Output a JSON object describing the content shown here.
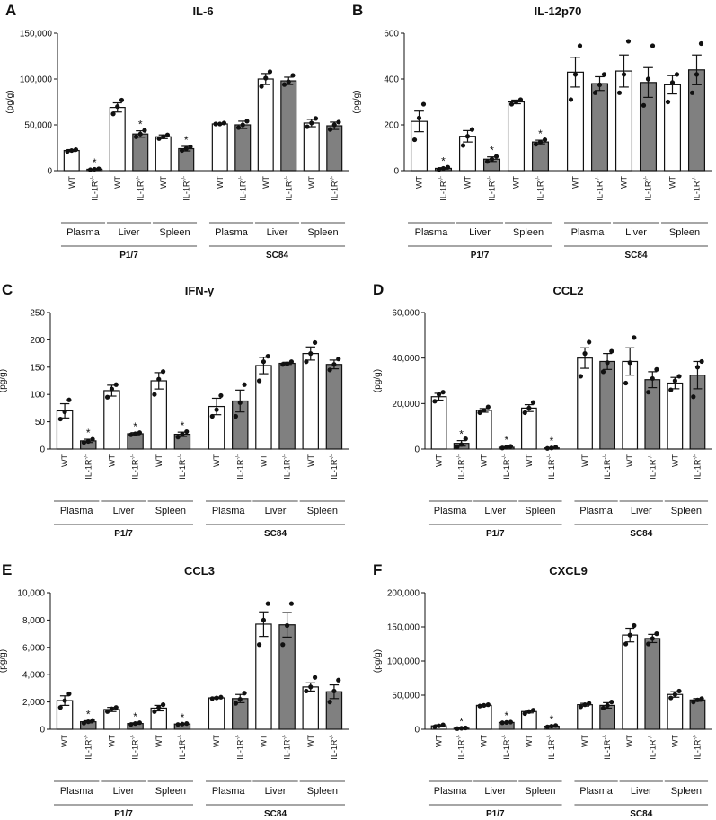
{
  "figure": {
    "colors": {
      "wt_fill": "#ffffff",
      "ko_fill": "#808080",
      "stroke": "#111111"
    },
    "wt_label": "WT",
    "ko_label": "IL-1R",
    "ko_superscript": "-/-",
    "tissue_labels": [
      "Plasma",
      "Liver",
      "Spleen",
      "Plasma",
      "Liver",
      "Spleen"
    ],
    "model_labels": [
      "P1/7",
      "SC84"
    ],
    "significance_marker": "*"
  },
  "chart_data": [
    {
      "panel": "A",
      "title": "IL-6",
      "type": "bar",
      "ylabel": "(pg/g)",
      "ylim": [
        0,
        150000
      ],
      "yticks": [
        "0",
        "50,000",
        "100,000",
        "150,000"
      ],
      "ytick_values": [
        0,
        50000,
        100000,
        150000
      ],
      "categories": [
        "WT",
        "IL-1R-/-",
        "WT",
        "IL-1R-/-",
        "WT",
        "IL-1R-/-",
        "WT",
        "IL-1R-/-",
        "WT",
        "IL-1R-/-",
        "WT",
        "IL-1R-/-"
      ],
      "values": [
        22000,
        1500,
        69000,
        40000,
        37000,
        24000,
        51000,
        50000,
        100000,
        98000,
        52000,
        49000
      ],
      "errors": [
        1000,
        300,
        5000,
        3500,
        2000,
        2500,
        500,
        4000,
        6000,
        4000,
        4000,
        4000
      ],
      "points": [
        [
          21000,
          22000,
          23000
        ],
        [
          1000,
          1500,
          2000
        ],
        [
          62000,
          70000,
          77000
        ],
        [
          37000,
          40000,
          44000
        ],
        [
          35000,
          37000,
          39000
        ],
        [
          22000,
          24000,
          26000
        ],
        [
          51000,
          51000,
          52000
        ],
        [
          47000,
          50000,
          54000
        ],
        [
          92000,
          101000,
          108000
        ],
        [
          94000,
          97000,
          104000
        ],
        [
          48000,
          52000,
          57000
        ],
        [
          45000,
          50000,
          53000
        ]
      ],
      "significant": [
        false,
        true,
        false,
        true,
        false,
        true,
        false,
        false,
        false,
        false,
        false,
        false
      ]
    },
    {
      "panel": "B",
      "title": "IL-12p70",
      "type": "bar",
      "ylabel": "(pg/g)",
      "ylim": [
        0,
        600
      ],
      "yticks": [
        "0",
        "200",
        "400",
        "600"
      ],
      "ytick_values": [
        0,
        200,
        400,
        600
      ],
      "categories": [
        "WT",
        "IL-1R-/-",
        "WT",
        "IL-1R-/-",
        "WT",
        "IL-1R-/-",
        "WT",
        "IL-1R-/-",
        "WT",
        "IL-1R-/-",
        "WT",
        "IL-1R-/-"
      ],
      "values": [
        215,
        10,
        150,
        50,
        300,
        125,
        430,
        380,
        435,
        385,
        375,
        440
      ],
      "errors": [
        45,
        3,
        25,
        10,
        8,
        8,
        65,
        30,
        70,
        65,
        40,
        65
      ],
      "points": [
        [
          135,
          230,
          290
        ],
        [
          5,
          10,
          15
        ],
        [
          110,
          150,
          180
        ],
        [
          40,
          50,
          62
        ],
        [
          290,
          300,
          310
        ],
        [
          115,
          125,
          135
        ],
        [
          310,
          420,
          545
        ],
        [
          340,
          375,
          420
        ],
        [
          340,
          420,
          565
        ],
        [
          285,
          400,
          545
        ],
        [
          300,
          385,
          420
        ],
        [
          340,
          420,
          555
        ]
      ],
      "significant": [
        false,
        true,
        false,
        true,
        false,
        true,
        false,
        false,
        false,
        false,
        false,
        false
      ]
    },
    {
      "panel": "C",
      "title": "IFN-γ",
      "type": "bar",
      "ylabel": "(pg/g)",
      "ylim": [
        0,
        250
      ],
      "yticks": [
        "0",
        "50",
        "100",
        "150",
        "200",
        "250"
      ],
      "ytick_values": [
        0,
        50,
        100,
        150,
        200,
        250
      ],
      "categories": [
        "WT",
        "IL-1R-/-",
        "WT",
        "IL-1R-/-",
        "WT",
        "IL-1R-/-",
        "WT",
        "IL-1R-/-",
        "WT",
        "IL-1R-/-",
        "WT",
        "IL-1R-/-"
      ],
      "values": [
        70,
        15,
        107,
        28,
        125,
        27,
        78,
        88,
        153,
        157,
        175,
        155
      ],
      "errors": [
        13,
        3,
        10,
        2,
        15,
        4,
        15,
        20,
        15,
        2,
        12,
        8
      ],
      "points": [
        [
          55,
          68,
          90
        ],
        [
          12,
          14,
          18
        ],
        [
          95,
          110,
          118
        ],
        [
          26,
          28,
          30
        ],
        [
          100,
          128,
          142
        ],
        [
          22,
          27,
          32
        ],
        [
          60,
          72,
          98
        ],
        [
          60,
          85,
          118
        ],
        [
          125,
          160,
          170
        ],
        [
          155,
          156,
          160
        ],
        [
          160,
          175,
          195
        ],
        [
          145,
          155,
          165
        ]
      ],
      "significant": [
        false,
        true,
        false,
        true,
        false,
        true,
        false,
        false,
        false,
        false,
        false,
        false
      ]
    },
    {
      "panel": "D",
      "title": "CCL2",
      "type": "bar",
      "ylabel": "(pg/g)",
      "ylim": [
        0,
        60000
      ],
      "yticks": [
        "0",
        "20,000",
        "40,000",
        "60,000"
      ],
      "ytick_values": [
        0,
        20000,
        40000,
        60000
      ],
      "categories": [
        "WT",
        "IL-1R-/-",
        "WT",
        "IL-1R-/-",
        "WT",
        "IL-1R-/-",
        "WT",
        "IL-1R-/-",
        "WT",
        "IL-1R-/-",
        "WT",
        "IL-1R-/-"
      ],
      "values": [
        23000,
        2500,
        17000,
        800,
        18000,
        500,
        40000,
        38500,
        38500,
        30500,
        29000,
        32500
      ],
      "errors": [
        1500,
        1200,
        800,
        300,
        1500,
        200,
        4500,
        3500,
        6000,
        3500,
        2500,
        6000
      ],
      "points": [
        [
          21000,
          24000,
          25000
        ],
        [
          1000,
          2000,
          4500
        ],
        [
          16000,
          17000,
          18500
        ],
        [
          500,
          800,
          1200
        ],
        [
          16000,
          18000,
          20500
        ],
        [
          300,
          500,
          800
        ],
        [
          32000,
          42000,
          47000
        ],
        [
          34000,
          38000,
          43000
        ],
        [
          29000,
          38000,
          49000
        ],
        [
          25000,
          31000,
          35000
        ],
        [
          26000,
          30000,
          32000
        ],
        [
          23000,
          36000,
          38500
        ]
      ],
      "significant": [
        false,
        true,
        false,
        true,
        false,
        true,
        false,
        false,
        false,
        false,
        false,
        false
      ]
    },
    {
      "panel": "E",
      "title": "CCL3",
      "type": "bar",
      "ylabel": "(pg/g)",
      "ylim": [
        0,
        10000
      ],
      "yticks": [
        "0",
        "2,000",
        "4,000",
        "6,000",
        "8,000",
        "10,000"
      ],
      "ytick_values": [
        0,
        2000,
        4000,
        6000,
        8000,
        10000
      ],
      "categories": [
        "WT",
        "IL-1R-/-",
        "WT",
        "IL-1R-/-",
        "WT",
        "IL-1R-/-",
        "WT",
        "IL-1R-/-",
        "WT",
        "IL-1R-/-",
        "WT",
        "IL-1R-/-"
      ],
      "values": [
        2100,
        550,
        1450,
        420,
        1550,
        380,
        2300,
        2250,
        7700,
        7650,
        3100,
        2750
      ],
      "errors": [
        350,
        80,
        150,
        50,
        200,
        30,
        50,
        300,
        900,
        900,
        300,
        500
      ],
      "points": [
        [
          1600,
          2100,
          2600
        ],
        [
          450,
          550,
          650
        ],
        [
          1300,
          1500,
          1600
        ],
        [
          350,
          420,
          480
        ],
        [
          1300,
          1600,
          1800
        ],
        [
          350,
          380,
          420
        ],
        [
          2250,
          2300,
          2350
        ],
        [
          1900,
          2200,
          2650
        ],
        [
          6200,
          8000,
          9200
        ],
        [
          6200,
          7600,
          9200
        ],
        [
          2800,
          3100,
          3800
        ],
        [
          2000,
          2800,
          3600
        ]
      ],
      "significant": [
        false,
        true,
        false,
        true,
        false,
        true,
        false,
        false,
        false,
        false,
        false,
        false
      ]
    },
    {
      "panel": "F",
      "title": "CXCL9",
      "type": "bar",
      "ylabel": "(pg/g)",
      "ylim": [
        0,
        200000
      ],
      "yticks": [
        "0",
        "50,000",
        "100,000",
        "150,000",
        "200,000"
      ],
      "ytick_values": [
        0,
        50000,
        100000,
        150000,
        200000
      ],
      "categories": [
        "WT",
        "IL-1R-/-",
        "WT",
        "IL-1R-/-",
        "WT",
        "IL-1R-/-",
        "WT",
        "IL-1R-/-",
        "WT",
        "IL-1R-/-",
        "WT",
        "IL-1R-/-"
      ],
      "values": [
        5000,
        1500,
        35000,
        10000,
        26000,
        4500,
        36000,
        35000,
        138000,
        133000,
        51000,
        43000
      ],
      "errors": [
        1500,
        500,
        1000,
        500,
        2000,
        1000,
        2000,
        4000,
        10000,
        6000,
        4000,
        2000
      ],
      "points": [
        [
          3500,
          5000,
          6500
        ],
        [
          1000,
          1500,
          2000
        ],
        [
          34000,
          35000,
          36000
        ],
        [
          9500,
          10000,
          10500
        ],
        [
          23000,
          26000,
          28000
        ],
        [
          3500,
          4500,
          5500
        ],
        [
          33000,
          36000,
          38000
        ],
        [
          31000,
          35000,
          40000
        ],
        [
          125000,
          138000,
          152000
        ],
        [
          125000,
          133000,
          140000
        ],
        [
          46000,
          51000,
          56000
        ],
        [
          40000,
          43000,
          45000
        ]
      ],
      "significant": [
        false,
        true,
        false,
        true,
        false,
        true,
        false,
        false,
        false,
        false,
        false,
        false
      ]
    }
  ]
}
